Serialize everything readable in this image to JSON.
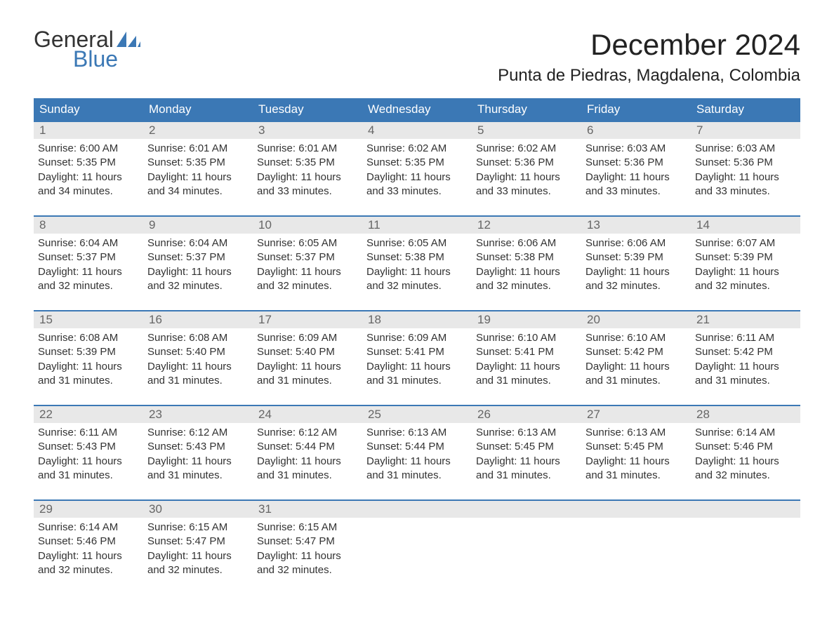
{
  "brand": {
    "top": "General",
    "bottom": "Blue",
    "accent_color": "#3b78b5"
  },
  "title": "December 2024",
  "subtitle": "Punta de Piedras, Magdalena, Colombia",
  "colors": {
    "header_bg": "#3b78b5",
    "header_text": "#ffffff",
    "daynum_bg": "#e8e8e8",
    "daynum_text": "#666666",
    "body_text": "#333333",
    "row_border": "#3b78b5",
    "background": "#ffffff"
  },
  "fonts": {
    "title_pt": 42,
    "subtitle_pt": 24,
    "dow_pt": 17,
    "body_pt": 15
  },
  "days_of_week": [
    "Sunday",
    "Monday",
    "Tuesday",
    "Wednesday",
    "Thursday",
    "Friday",
    "Saturday"
  ],
  "weeks": [
    [
      {
        "n": "1",
        "sunrise": "Sunrise: 6:00 AM",
        "sunset": "Sunset: 5:35 PM",
        "d1": "Daylight: 11 hours",
        "d2": "and 34 minutes."
      },
      {
        "n": "2",
        "sunrise": "Sunrise: 6:01 AM",
        "sunset": "Sunset: 5:35 PM",
        "d1": "Daylight: 11 hours",
        "d2": "and 34 minutes."
      },
      {
        "n": "3",
        "sunrise": "Sunrise: 6:01 AM",
        "sunset": "Sunset: 5:35 PM",
        "d1": "Daylight: 11 hours",
        "d2": "and 33 minutes."
      },
      {
        "n": "4",
        "sunrise": "Sunrise: 6:02 AM",
        "sunset": "Sunset: 5:35 PM",
        "d1": "Daylight: 11 hours",
        "d2": "and 33 minutes."
      },
      {
        "n": "5",
        "sunrise": "Sunrise: 6:02 AM",
        "sunset": "Sunset: 5:36 PM",
        "d1": "Daylight: 11 hours",
        "d2": "and 33 minutes."
      },
      {
        "n": "6",
        "sunrise": "Sunrise: 6:03 AM",
        "sunset": "Sunset: 5:36 PM",
        "d1": "Daylight: 11 hours",
        "d2": "and 33 minutes."
      },
      {
        "n": "7",
        "sunrise": "Sunrise: 6:03 AM",
        "sunset": "Sunset: 5:36 PM",
        "d1": "Daylight: 11 hours",
        "d2": "and 33 minutes."
      }
    ],
    [
      {
        "n": "8",
        "sunrise": "Sunrise: 6:04 AM",
        "sunset": "Sunset: 5:37 PM",
        "d1": "Daylight: 11 hours",
        "d2": "and 32 minutes."
      },
      {
        "n": "9",
        "sunrise": "Sunrise: 6:04 AM",
        "sunset": "Sunset: 5:37 PM",
        "d1": "Daylight: 11 hours",
        "d2": "and 32 minutes."
      },
      {
        "n": "10",
        "sunrise": "Sunrise: 6:05 AM",
        "sunset": "Sunset: 5:37 PM",
        "d1": "Daylight: 11 hours",
        "d2": "and 32 minutes."
      },
      {
        "n": "11",
        "sunrise": "Sunrise: 6:05 AM",
        "sunset": "Sunset: 5:38 PM",
        "d1": "Daylight: 11 hours",
        "d2": "and 32 minutes."
      },
      {
        "n": "12",
        "sunrise": "Sunrise: 6:06 AM",
        "sunset": "Sunset: 5:38 PM",
        "d1": "Daylight: 11 hours",
        "d2": "and 32 minutes."
      },
      {
        "n": "13",
        "sunrise": "Sunrise: 6:06 AM",
        "sunset": "Sunset: 5:39 PM",
        "d1": "Daylight: 11 hours",
        "d2": "and 32 minutes."
      },
      {
        "n": "14",
        "sunrise": "Sunrise: 6:07 AM",
        "sunset": "Sunset: 5:39 PM",
        "d1": "Daylight: 11 hours",
        "d2": "and 32 minutes."
      }
    ],
    [
      {
        "n": "15",
        "sunrise": "Sunrise: 6:08 AM",
        "sunset": "Sunset: 5:39 PM",
        "d1": "Daylight: 11 hours",
        "d2": "and 31 minutes."
      },
      {
        "n": "16",
        "sunrise": "Sunrise: 6:08 AM",
        "sunset": "Sunset: 5:40 PM",
        "d1": "Daylight: 11 hours",
        "d2": "and 31 minutes."
      },
      {
        "n": "17",
        "sunrise": "Sunrise: 6:09 AM",
        "sunset": "Sunset: 5:40 PM",
        "d1": "Daylight: 11 hours",
        "d2": "and 31 minutes."
      },
      {
        "n": "18",
        "sunrise": "Sunrise: 6:09 AM",
        "sunset": "Sunset: 5:41 PM",
        "d1": "Daylight: 11 hours",
        "d2": "and 31 minutes."
      },
      {
        "n": "19",
        "sunrise": "Sunrise: 6:10 AM",
        "sunset": "Sunset: 5:41 PM",
        "d1": "Daylight: 11 hours",
        "d2": "and 31 minutes."
      },
      {
        "n": "20",
        "sunrise": "Sunrise: 6:10 AM",
        "sunset": "Sunset: 5:42 PM",
        "d1": "Daylight: 11 hours",
        "d2": "and 31 minutes."
      },
      {
        "n": "21",
        "sunrise": "Sunrise: 6:11 AM",
        "sunset": "Sunset: 5:42 PM",
        "d1": "Daylight: 11 hours",
        "d2": "and 31 minutes."
      }
    ],
    [
      {
        "n": "22",
        "sunrise": "Sunrise: 6:11 AM",
        "sunset": "Sunset: 5:43 PM",
        "d1": "Daylight: 11 hours",
        "d2": "and 31 minutes."
      },
      {
        "n": "23",
        "sunrise": "Sunrise: 6:12 AM",
        "sunset": "Sunset: 5:43 PM",
        "d1": "Daylight: 11 hours",
        "d2": "and 31 minutes."
      },
      {
        "n": "24",
        "sunrise": "Sunrise: 6:12 AM",
        "sunset": "Sunset: 5:44 PM",
        "d1": "Daylight: 11 hours",
        "d2": "and 31 minutes."
      },
      {
        "n": "25",
        "sunrise": "Sunrise: 6:13 AM",
        "sunset": "Sunset: 5:44 PM",
        "d1": "Daylight: 11 hours",
        "d2": "and 31 minutes."
      },
      {
        "n": "26",
        "sunrise": "Sunrise: 6:13 AM",
        "sunset": "Sunset: 5:45 PM",
        "d1": "Daylight: 11 hours",
        "d2": "and 31 minutes."
      },
      {
        "n": "27",
        "sunrise": "Sunrise: 6:13 AM",
        "sunset": "Sunset: 5:45 PM",
        "d1": "Daylight: 11 hours",
        "d2": "and 31 minutes."
      },
      {
        "n": "28",
        "sunrise": "Sunrise: 6:14 AM",
        "sunset": "Sunset: 5:46 PM",
        "d1": "Daylight: 11 hours",
        "d2": "and 32 minutes."
      }
    ],
    [
      {
        "n": "29",
        "sunrise": "Sunrise: 6:14 AM",
        "sunset": "Sunset: 5:46 PM",
        "d1": "Daylight: 11 hours",
        "d2": "and 32 minutes."
      },
      {
        "n": "30",
        "sunrise": "Sunrise: 6:15 AM",
        "sunset": "Sunset: 5:47 PM",
        "d1": "Daylight: 11 hours",
        "d2": "and 32 minutes."
      },
      {
        "n": "31",
        "sunrise": "Sunrise: 6:15 AM",
        "sunset": "Sunset: 5:47 PM",
        "d1": "Daylight: 11 hours",
        "d2": "and 32 minutes."
      },
      {
        "empty": true
      },
      {
        "empty": true
      },
      {
        "empty": true
      },
      {
        "empty": true
      }
    ]
  ]
}
